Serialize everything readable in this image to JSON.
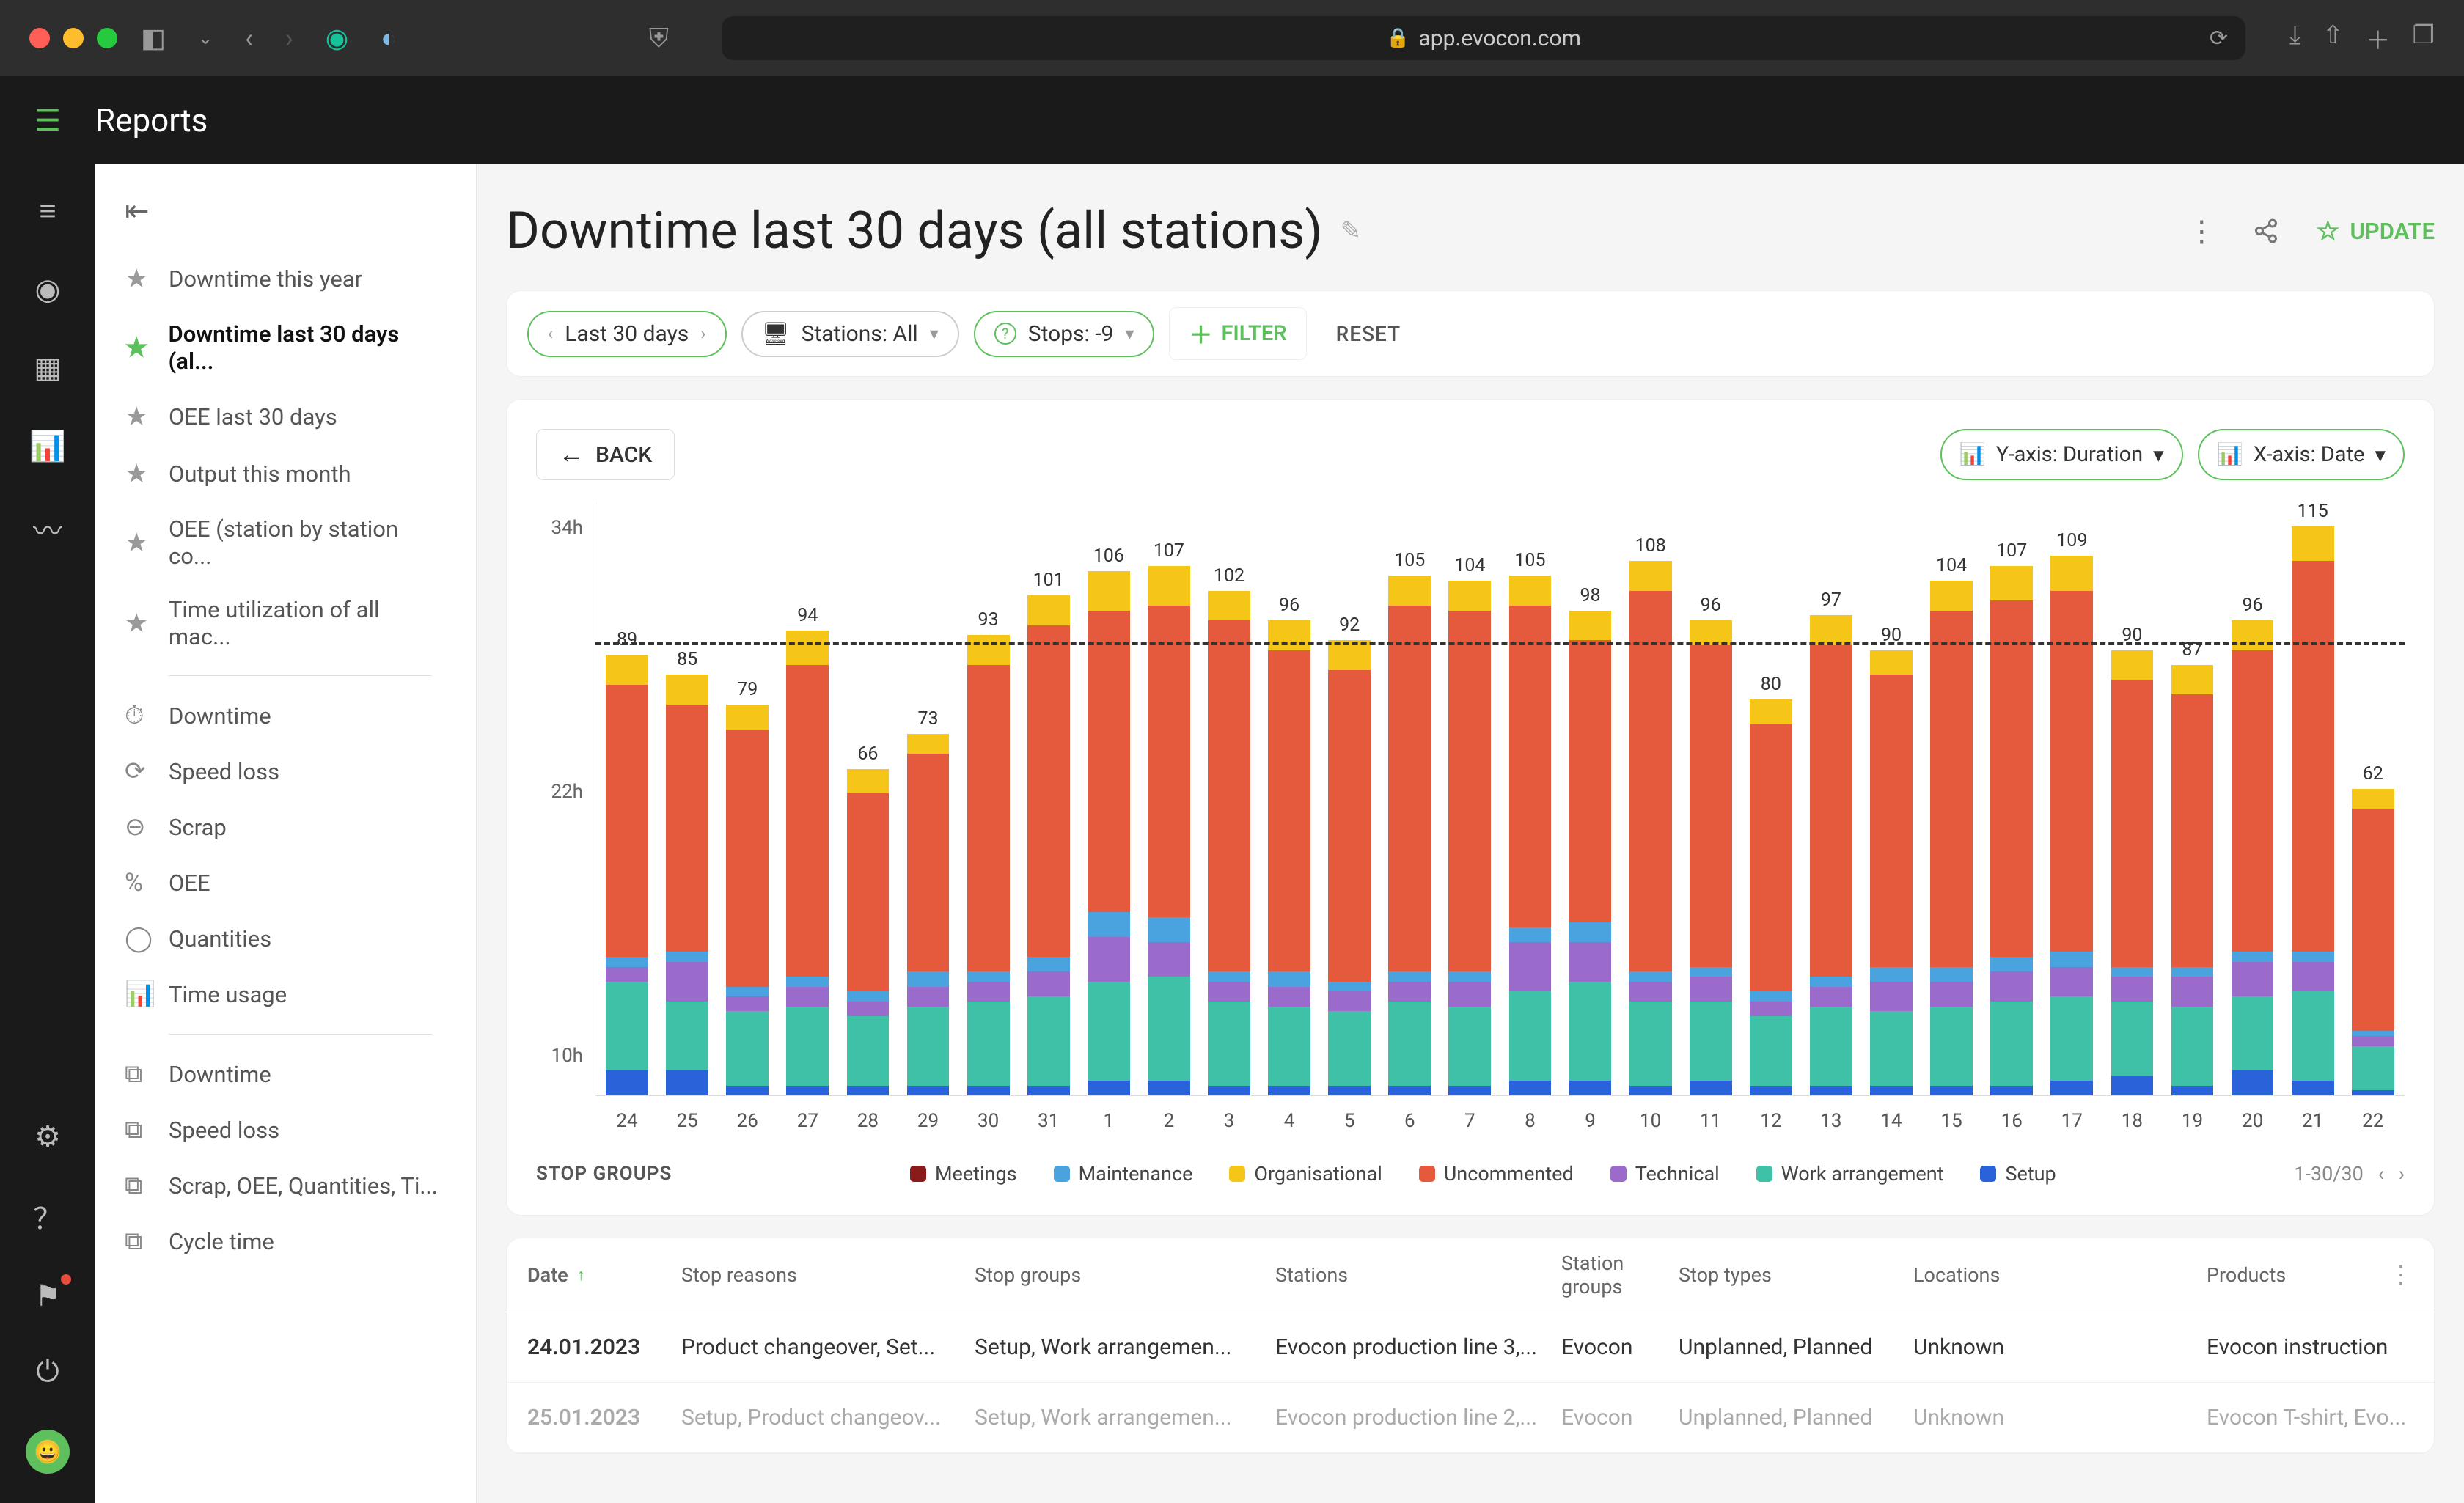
{
  "browser": {
    "url": "app.evocon.com"
  },
  "app": {
    "title": "Reports"
  },
  "sidebar": {
    "favorites": [
      {
        "label": "Downtime this year",
        "active": false
      },
      {
        "label": "Downtime last 30 days (al...",
        "active": true
      },
      {
        "label": "OEE last 30 days",
        "active": false
      },
      {
        "label": "Output this month",
        "active": false
      },
      {
        "label": "OEE (station by station co...",
        "active": false
      },
      {
        "label": "Time utilization of all mac...",
        "active": false
      }
    ],
    "metrics": [
      {
        "label": "Downtime",
        "glyph": "⏱"
      },
      {
        "label": "Speed loss",
        "glyph": "⟳"
      },
      {
        "label": "Scrap",
        "glyph": "⊖"
      },
      {
        "label": "OEE",
        "glyph": "%"
      },
      {
        "label": "Quantities",
        "glyph": "◯"
      },
      {
        "label": "Time usage",
        "glyph": "📊"
      }
    ],
    "templates": [
      {
        "label": "Downtime",
        "glyph": "⧉"
      },
      {
        "label": "Speed loss",
        "glyph": "⧉"
      },
      {
        "label": "Scrap, OEE, Quantities, Ti...",
        "glyph": "⧉"
      },
      {
        "label": "Cycle time",
        "glyph": "⧉"
      }
    ]
  },
  "page": {
    "title": "Downtime last 30 days (all stations)",
    "actions": {
      "update": "UPDATE"
    }
  },
  "filters": {
    "range": "Last 30 days",
    "stations": "Stations: All",
    "stops": "Stops: -9",
    "add": "FILTER",
    "reset": "RESET"
  },
  "chart": {
    "back": "BACK",
    "yaxis": "Y-axis: Duration",
    "xaxis": "X-axis: Date",
    "y_ticks": [
      "34h",
      "22h",
      "10h"
    ],
    "y_max": 120,
    "avg_line": 91,
    "colors": {
      "Meetings": "#8b1a1a",
      "Maintenance": "#4aa3df",
      "Organisational": "#f5c518",
      "Uncommented": "#e55a3c",
      "Technical": "#9b6bcc",
      "Work arrangement": "#3fc1a8",
      "Setup": "#2962d9"
    },
    "legend_title": "STOP GROUPS",
    "legend": [
      "Meetings",
      "Maintenance",
      "Organisational",
      "Uncommented",
      "Technical",
      "Work arrangement",
      "Setup"
    ],
    "pager": "1-30/30",
    "bars": [
      {
        "x": "24",
        "total": 89,
        "segs": {
          "Setup": 5,
          "Work arrangement": 18,
          "Technical": 3,
          "Maintenance": 2,
          "Uncommented": 55,
          "Organisational": 6
        }
      },
      {
        "x": "25",
        "total": 85,
        "segs": {
          "Setup": 5,
          "Work arrangement": 14,
          "Technical": 8,
          "Maintenance": 2,
          "Uncommented": 50,
          "Organisational": 6
        }
      },
      {
        "x": "26",
        "total": 79,
        "segs": {
          "Setup": 2,
          "Work arrangement": 15,
          "Technical": 3,
          "Maintenance": 2,
          "Uncommented": 52,
          "Organisational": 5
        }
      },
      {
        "x": "27",
        "total": 94,
        "segs": {
          "Setup": 2,
          "Work arrangement": 16,
          "Technical": 4,
          "Maintenance": 2,
          "Uncommented": 63,
          "Organisational": 7
        }
      },
      {
        "x": "28",
        "total": 66,
        "segs": {
          "Setup": 2,
          "Work arrangement": 14,
          "Technical": 3,
          "Maintenance": 2,
          "Uncommented": 40,
          "Organisational": 5
        }
      },
      {
        "x": "29",
        "total": 73,
        "segs": {
          "Setup": 2,
          "Work arrangement": 16,
          "Technical": 4,
          "Maintenance": 3,
          "Uncommented": 44,
          "Organisational": 4
        }
      },
      {
        "x": "30",
        "total": 93,
        "segs": {
          "Setup": 2,
          "Work arrangement": 17,
          "Technical": 4,
          "Maintenance": 2,
          "Uncommented": 62,
          "Organisational": 6
        }
      },
      {
        "x": "31",
        "total": 101,
        "segs": {
          "Setup": 2,
          "Work arrangement": 18,
          "Technical": 5,
          "Maintenance": 3,
          "Uncommented": 67,
          "Organisational": 6
        }
      },
      {
        "x": "1",
        "total": 106,
        "segs": {
          "Setup": 3,
          "Work arrangement": 20,
          "Technical": 9,
          "Maintenance": 5,
          "Uncommented": 61,
          "Organisational": 8
        }
      },
      {
        "x": "2",
        "total": 107,
        "segs": {
          "Setup": 3,
          "Work arrangement": 21,
          "Technical": 7,
          "Maintenance": 5,
          "Uncommented": 63,
          "Organisational": 8
        }
      },
      {
        "x": "3",
        "total": 102,
        "segs": {
          "Setup": 2,
          "Work arrangement": 17,
          "Technical": 4,
          "Maintenance": 2,
          "Uncommented": 71,
          "Organisational": 6
        }
      },
      {
        "x": "4",
        "total": 96,
        "segs": {
          "Setup": 2,
          "Work arrangement": 16,
          "Technical": 4,
          "Maintenance": 3,
          "Uncommented": 65,
          "Organisational": 6
        }
      },
      {
        "x": "5",
        "total": 92,
        "segs": {
          "Setup": 2,
          "Work arrangement": 15,
          "Technical": 4,
          "Maintenance": 2,
          "Uncommented": 63,
          "Organisational": 6
        }
      },
      {
        "x": "6",
        "total": 105,
        "segs": {
          "Setup": 2,
          "Work arrangement": 17,
          "Technical": 4,
          "Maintenance": 2,
          "Uncommented": 74,
          "Organisational": 6
        }
      },
      {
        "x": "7",
        "total": 104,
        "segs": {
          "Setup": 2,
          "Work arrangement": 16,
          "Technical": 5,
          "Maintenance": 2,
          "Uncommented": 73,
          "Organisational": 6
        }
      },
      {
        "x": "8",
        "total": 105,
        "segs": {
          "Setup": 3,
          "Work arrangement": 18,
          "Technical": 10,
          "Maintenance": 3,
          "Uncommented": 65,
          "Organisational": 6
        }
      },
      {
        "x": "9",
        "total": 98,
        "segs": {
          "Setup": 3,
          "Work arrangement": 20,
          "Technical": 8,
          "Maintenance": 4,
          "Uncommented": 57,
          "Organisational": 6
        }
      },
      {
        "x": "10",
        "total": 108,
        "segs": {
          "Setup": 2,
          "Work arrangement": 17,
          "Technical": 4,
          "Maintenance": 2,
          "Uncommented": 77,
          "Organisational": 6
        }
      },
      {
        "x": "11",
        "total": 96,
        "segs": {
          "Setup": 3,
          "Work arrangement": 16,
          "Technical": 5,
          "Maintenance": 2,
          "Uncommented": 65,
          "Organisational": 5,
          "Meetings": 0
        }
      },
      {
        "x": "12",
        "total": 80,
        "segs": {
          "Setup": 2,
          "Work arrangement": 14,
          "Technical": 3,
          "Maintenance": 2,
          "Uncommented": 54,
          "Organisational": 5
        }
      },
      {
        "x": "13",
        "total": 97,
        "segs": {
          "Setup": 2,
          "Work arrangement": 16,
          "Technical": 4,
          "Maintenance": 2,
          "Uncommented": 67,
          "Organisational": 6
        }
      },
      {
        "x": "14",
        "total": 90,
        "segs": {
          "Setup": 2,
          "Work arrangement": 15,
          "Technical": 6,
          "Maintenance": 3,
          "Uncommented": 59,
          "Organisational": 5
        }
      },
      {
        "x": "15",
        "total": 104,
        "segs": {
          "Setup": 2,
          "Work arrangement": 16,
          "Technical": 5,
          "Maintenance": 3,
          "Uncommented": 72,
          "Organisational": 6
        }
      },
      {
        "x": "16",
        "total": 107,
        "segs": {
          "Setup": 2,
          "Work arrangement": 17,
          "Technical": 6,
          "Maintenance": 3,
          "Uncommented": 72,
          "Organisational": 7
        }
      },
      {
        "x": "17",
        "total": 109,
        "segs": {
          "Setup": 3,
          "Work arrangement": 17,
          "Technical": 6,
          "Maintenance": 3,
          "Uncommented": 73,
          "Organisational": 7
        }
      },
      {
        "x": "18",
        "total": 90,
        "segs": {
          "Setup": 4,
          "Work arrangement": 15,
          "Technical": 5,
          "Maintenance": 2,
          "Uncommented": 58,
          "Organisational": 6
        }
      },
      {
        "x": "19",
        "total": 87,
        "segs": {
          "Setup": 2,
          "Work arrangement": 16,
          "Technical": 6,
          "Maintenance": 2,
          "Uncommented": 55,
          "Organisational": 6
        }
      },
      {
        "x": "20",
        "total": 96,
        "segs": {
          "Setup": 5,
          "Work arrangement": 15,
          "Technical": 7,
          "Maintenance": 2,
          "Uncommented": 61,
          "Organisational": 6
        }
      },
      {
        "x": "21",
        "total": 115,
        "segs": {
          "Setup": 3,
          "Work arrangement": 18,
          "Technical": 6,
          "Maintenance": 2,
          "Uncommented": 79,
          "Organisational": 7
        }
      },
      {
        "x": "22",
        "total": 62,
        "segs": {
          "Setup": 1,
          "Work arrangement": 9,
          "Technical": 2,
          "Maintenance": 1,
          "Uncommented": 45,
          "Organisational": 4
        }
      }
    ]
  },
  "table": {
    "columns": [
      "Date",
      "Stop reasons",
      "Stop groups",
      "Stations",
      "Station groups",
      "Stop types",
      "Locations",
      "Products"
    ],
    "rows": [
      {
        "date": "24.01.2023",
        "reasons": "Product changeover, Set...",
        "groups": "Setup, Work arrangemen...",
        "stations": "Evocon production line 3,...",
        "stgroups": "Evocon",
        "types": "Unplanned, Planned",
        "loc": "Unknown",
        "prod": "Evocon instruction"
      },
      {
        "date": "25.01.2023",
        "reasons": "Setup, Product changeov...",
        "groups": "Setup, Work arrangemen...",
        "stations": "Evocon production line 2,...",
        "stgroups": "Evocon",
        "types": "Unplanned, Planned",
        "loc": "Unknown",
        "prod": "Evocon T-shirt, Evo..."
      }
    ]
  }
}
